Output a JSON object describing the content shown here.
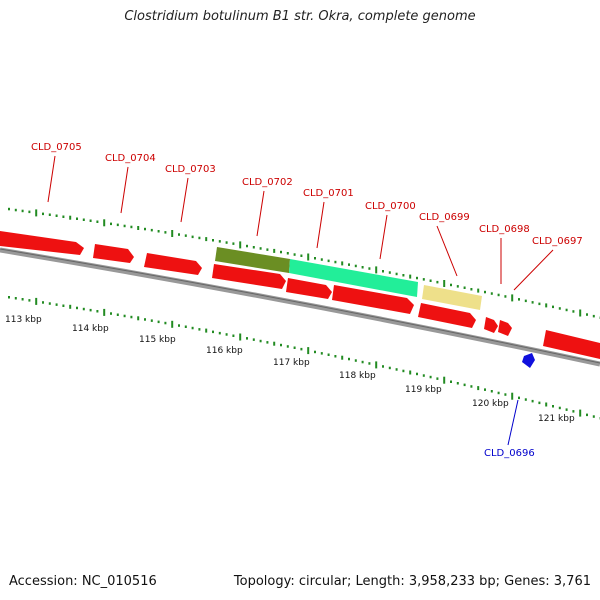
{
  "title": "Clostridium botulinum B1 str. Okra, complete genome",
  "footer": {
    "accession": "Accession: NC_010516",
    "topology": "Topology: circular; Length: 3,958,233 bp; Genes: 3,761"
  },
  "colors": {
    "cds_forward": "#ee1111",
    "cds_reverse": "#ee1111",
    "gene_0702": "#6b8e23",
    "gene_0701": "#22ee99",
    "gene_0699": "#eee08a",
    "gene_0696": "#1010dd",
    "backbone": "#888888",
    "ticks": "#228b22",
    "label_red": "#cc0000",
    "label_blue": "#0000cc"
  },
  "scale_ticks": [
    "113 kbp",
    "114 kbp",
    "115 kbp",
    "116 kbp",
    "117 kbp",
    "118 kbp",
    "119 kbp",
    "120 kbp",
    "121 kbp"
  ],
  "gene_labels": [
    {
      "text": "CLD_0705",
      "color": "red"
    },
    {
      "text": "CLD_0704",
      "color": "red"
    },
    {
      "text": "CLD_0703",
      "color": "red"
    },
    {
      "text": "CLD_0702",
      "color": "red"
    },
    {
      "text": "CLD_0701",
      "color": "red"
    },
    {
      "text": "CLD_0700",
      "color": "red"
    },
    {
      "text": "CLD_0699",
      "color": "red"
    },
    {
      "text": "CLD_0698",
      "color": "red"
    },
    {
      "text": "CLD_0697",
      "color": "red"
    },
    {
      "text": "CLD_0696",
      "color": "blue"
    }
  ]
}
